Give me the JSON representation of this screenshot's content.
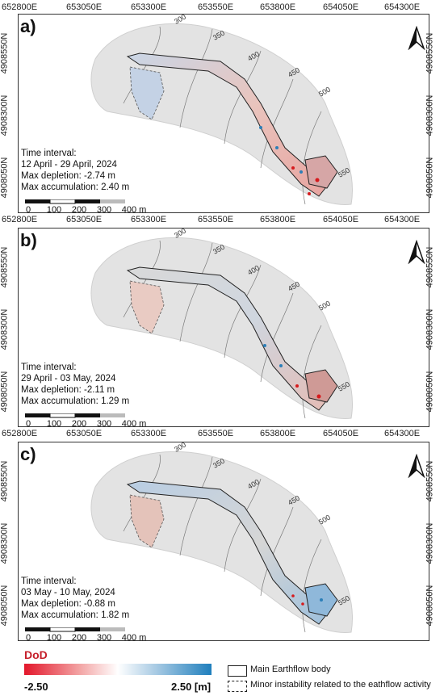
{
  "eastings": [
    "652800E",
    "653050E",
    "653300E",
    "653550E",
    "653800E",
    "654050E",
    "654300E"
  ],
  "northings": [
    "4908550N",
    "4908300N",
    "4908050N"
  ],
  "panels": [
    {
      "label": "a)",
      "info": {
        "title": "Time interval:",
        "interval": "12 April - 29 April, 2024",
        "depletion": "Max depletion: -2.74 m",
        "accumulation": "Max accumulation: 2.40 m"
      }
    },
    {
      "label": "b)",
      "info": {
        "title": "Time interval:",
        "interval": "29 April - 03 May, 2024",
        "depletion": "Max depletion: -2.11 m",
        "accumulation": "Max accumulation: 1.29 m"
      }
    },
    {
      "label": "c)",
      "info": {
        "title": "Time interval:",
        "interval": "03 May - 10 May, 2024",
        "depletion": "Max depletion: -0.88 m",
        "accumulation": "Max accumulation: 1.82 m"
      }
    }
  ],
  "contours": [
    "300",
    "350",
    "400",
    "450",
    "500",
    "550"
  ],
  "scale_bar": [
    "0",
    "100",
    "200",
    "300",
    "400 m"
  ],
  "legend": {
    "title": "DoD",
    "min": "-2.50",
    "max": "2.50 [m]",
    "items": [
      {
        "label": "Main Earthflow body",
        "style": "solid"
      },
      {
        "label": "Minor instability related to the eathflow activity",
        "style": "dashed"
      }
    ],
    "colors": {
      "negative": "#e3172b",
      "neutral": "#ffffff",
      "positive": "#1f7fbd"
    }
  }
}
